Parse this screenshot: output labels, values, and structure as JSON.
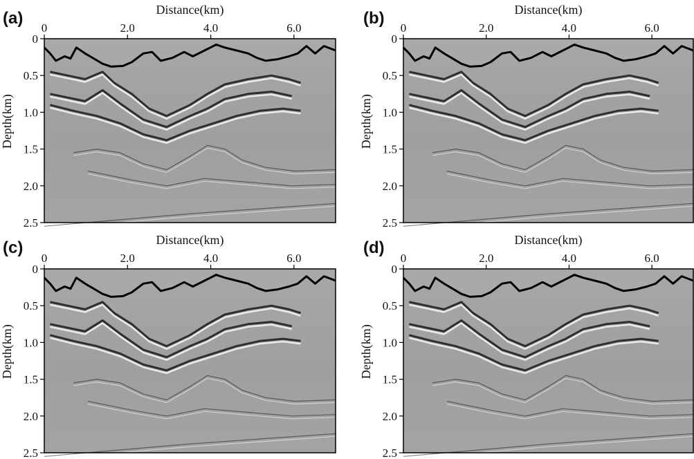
{
  "figure": {
    "panels": [
      {
        "label": "(a)",
        "xlabel": "Distance(km)",
        "ylabel": "Depth(km)",
        "xticks": [
          "0",
          "2.0",
          "4.0",
          "6.0"
        ],
        "yticks": [
          "0",
          "0.5",
          "1.0",
          "1.5",
          "2.0",
          "2.5"
        ]
      },
      {
        "label": "(b)",
        "xlabel": "Distance(km)",
        "ylabel": "Depth(km)",
        "xticks": [
          "0",
          "2.0",
          "4.0",
          "6.0"
        ],
        "yticks": [
          "0",
          "0.5",
          "1.0",
          "1.5",
          "2.0",
          "2.5"
        ]
      },
      {
        "label": "(c)",
        "xlabel": "Distance(km)",
        "ylabel": "Depth(km)",
        "xticks": [
          "0",
          "2.0",
          "4.0",
          "6.0"
        ],
        "yticks": [
          "0",
          "0.5",
          "1.0",
          "1.5",
          "2.0",
          "2.5"
        ]
      },
      {
        "label": "(d)",
        "xlabel": "Distance(km)",
        "ylabel": "Depth(km)",
        "xticks": [
          "0",
          "2.0",
          "4.0",
          "6.0"
        ],
        "yticks": [
          "0",
          "0.5",
          "1.0",
          "1.5",
          "2.0",
          "2.5"
        ]
      }
    ],
    "axes": {
      "x_range_km": [
        0,
        7.0
      ],
      "y_range_km": [
        0,
        2.5
      ],
      "x_tick_values": [
        0,
        2.0,
        4.0,
        6.0
      ],
      "y_tick_values": [
        0,
        0.5,
        1.0,
        1.5,
        2.0,
        2.5
      ]
    },
    "colors": {
      "background_gray": "#a9a9a9",
      "section_gray": "#9c9c9c",
      "reflector_light": "#f2f2f2",
      "reflector_dark": "#1a1a1a",
      "topography": "#000000"
    }
  }
}
